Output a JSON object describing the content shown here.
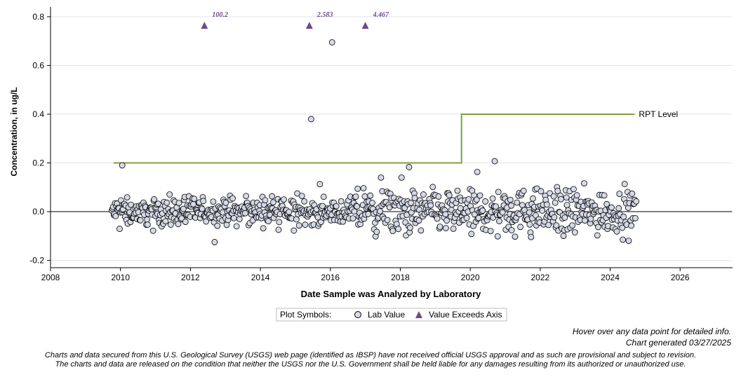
{
  "chart_data": {
    "type": "scatter",
    "ylabel": "Concentration, in ug/L",
    "xlabel": "Date Sample was Analyzed by Laboratory",
    "xlim": [
      2008,
      2027.5
    ],
    "ylim": [
      -0.23,
      0.84
    ],
    "x_ticks": [
      "2008",
      "2010",
      "2012",
      "2014",
      "2016",
      "2018",
      "2020",
      "2022",
      "2024",
      "2026"
    ],
    "y_ticks": [
      "-0.2",
      "0.0",
      "0.2",
      "0.4",
      "0.6",
      "0.8"
    ],
    "grid": "horizontal",
    "zero_line": true,
    "legend": {
      "position": "bottom-center",
      "title": "Plot Symbols:",
      "items": [
        "Lab Value",
        "Value Exceeds Axis"
      ]
    },
    "rpt_level": {
      "label": "RPT Level",
      "color": "#7da13a",
      "steps": [
        {
          "x": 2009.8,
          "y": 0.2
        },
        {
          "x": 2019.75,
          "y": 0.2
        },
        {
          "x": 2019.75,
          "y": 0.4
        },
        {
          "x": 2024.7,
          "y": 0.4
        }
      ]
    },
    "lab_value_outliers": [
      {
        "x": 2010.05,
        "y": 0.19
      },
      {
        "x": 2015.45,
        "y": 0.38
      },
      {
        "x": 2016.05,
        "y": 0.695
      },
      {
        "x": 2020.7,
        "y": 0.207
      },
      {
        "x": 2018.25,
        "y": 0.183
      },
      {
        "x": 2020.2,
        "y": 0.163
      }
    ],
    "exceeds_axis": [
      {
        "x": 2012.4,
        "label": "100.2"
      },
      {
        "x": 2015.4,
        "label": "2.583"
      },
      {
        "x": 2017.0,
        "label": "4.467"
      }
    ],
    "sampling": {
      "start": 2009.75,
      "end": 2024.75,
      "spacing": 0.019,
      "typical_range": [
        -0.12,
        0.12
      ]
    },
    "colors": {
      "marker_fill": "#d4d9e6",
      "marker_stroke": "#000000",
      "exceed_marker": "#6a4c8c",
      "grid": "#e3e3e3",
      "axis": "#000000",
      "zero_line": "#808080"
    }
  },
  "notes": {
    "hover": "Hover over any data point for detailed info.",
    "generated": "Chart generated 03/27/2025"
  },
  "disclaimer": {
    "line1": "Charts and data secured from this U.S. Geological Survey (USGS) web page (identified as IBSP) have not received official USGS approval and as such are provisional and subject to revision.",
    "line2": "The charts and data are released on the condition that neither the USGS nor the U.S. Government shall be held liable for any damages resulting from its authorized or unauthorized use."
  }
}
